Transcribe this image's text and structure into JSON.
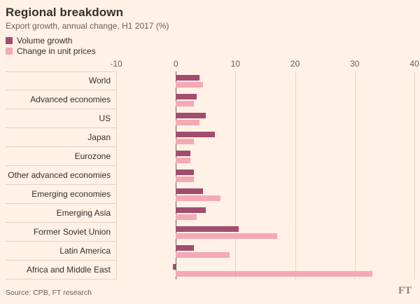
{
  "header": {
    "title": "Regional breakdown",
    "subtitle": "Export growth, annual change, H1 2017 (%)"
  },
  "chart_data": {
    "type": "bar",
    "orientation": "horizontal",
    "title": "Regional breakdown",
    "subtitle": "Export growth, annual change, H1 2017 (%)",
    "categories": [
      "World",
      "Advanced economies",
      "US",
      "Japan",
      "Eurozone",
      "Other advanced economies",
      "Emerging economies",
      "Emerging Asia",
      "Former Soviet Union",
      "Latin America",
      "Africa and Middle East"
    ],
    "series": [
      {
        "name": "Volume growth",
        "color": "#a14d6e",
        "values": [
          4,
          3.5,
          5,
          6.5,
          2.5,
          3,
          4.5,
          5,
          10.5,
          3,
          -0.5
        ]
      },
      {
        "name": "Change in unit prices",
        "color": "#f4a9b5",
        "values": [
          4.5,
          3,
          4,
          3,
          2.5,
          3,
          7.5,
          3.5,
          17,
          9,
          33
        ]
      }
    ],
    "xlim": [
      -10,
      40
    ],
    "xticks": [
      -10,
      0,
      10,
      20,
      30,
      40
    ],
    "grid": "vertical",
    "legend_position": "top-left"
  },
  "footer": {
    "source": "Source: CPB, FT research",
    "logo": "FT"
  },
  "colors": {
    "background": "#fff1e5",
    "text": "#33302e",
    "muted": "#66605c",
    "gridline": "#e6d5c5",
    "zero_line": "#66605c"
  }
}
